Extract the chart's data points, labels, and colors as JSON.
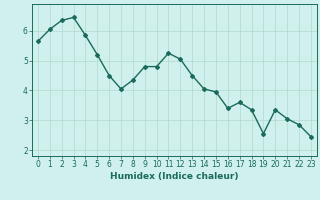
{
  "x": [
    0,
    1,
    2,
    3,
    4,
    5,
    6,
    7,
    8,
    9,
    10,
    11,
    12,
    13,
    14,
    15,
    16,
    17,
    18,
    19,
    20,
    21,
    22,
    23
  ],
  "y": [
    5.65,
    6.05,
    6.35,
    6.45,
    5.85,
    5.2,
    4.5,
    4.05,
    4.35,
    4.8,
    4.8,
    5.25,
    5.05,
    4.5,
    4.05,
    3.95,
    3.4,
    3.6,
    3.35,
    2.55,
    3.35,
    3.05,
    2.85,
    2.45
  ],
  "line_color": "#1a6b5a",
  "marker": "D",
  "marker_size": 2.0,
  "bg_color": "#cff0ec",
  "grid_color": "#b0d8d0",
  "xlabel": "Humidex (Indice chaleur)",
  "xlim": [
    -0.5,
    23.5
  ],
  "ylim": [
    1.8,
    6.9
  ],
  "yticks": [
    2,
    3,
    4,
    5,
    6
  ],
  "xticks": [
    0,
    1,
    2,
    3,
    4,
    5,
    6,
    7,
    8,
    9,
    10,
    11,
    12,
    13,
    14,
    15,
    16,
    17,
    18,
    19,
    20,
    21,
    22,
    23
  ],
  "tick_color": "#1a6b5a",
  "label_color": "#1a6b5a",
  "xlabel_fontsize": 6.5,
  "tick_fontsize": 5.5,
  "linewidth": 1.0
}
